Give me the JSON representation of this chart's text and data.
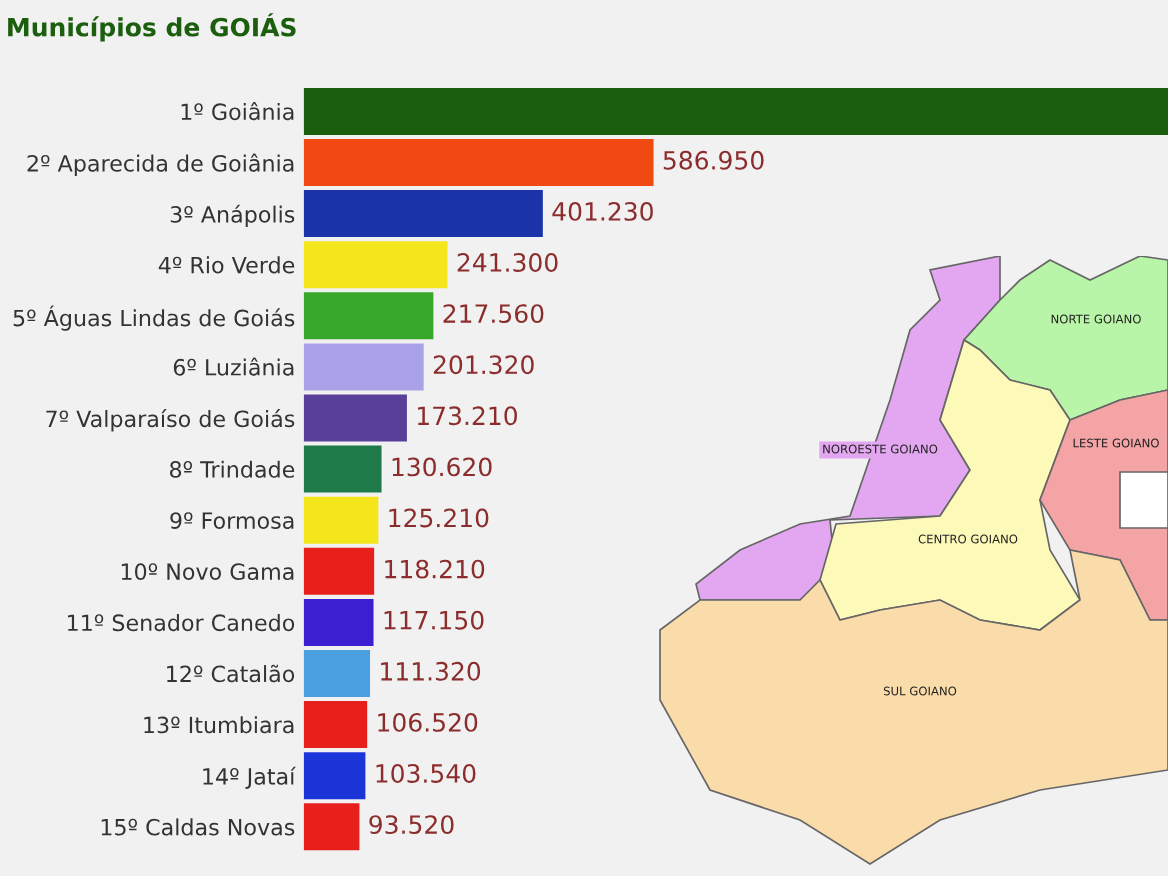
{
  "chart_data": {
    "type": "bar",
    "orientation": "horizontal",
    "title": "Municípios de GOIÁS",
    "categories": [
      "1º Goiânia",
      "2º Aparecida de Goiânia",
      "3º Anápolis",
      "4º Rio Verde",
      "5º Águas Lindas de Goiás",
      "6º Luziânia",
      "7º Valparaíso de Goiás",
      "8º Trindade",
      "9º Formosa",
      "10º Novo Gama",
      "11º Senador Canedo",
      "12º Catalão",
      "13º Itumbiara",
      "14º Jataí",
      "15º Caldas Novas"
    ],
    "values": [
      1450000,
      586950,
      401230,
      241300,
      217560,
      201320,
      173210,
      130620,
      125210,
      118210,
      117150,
      111320,
      106520,
      103540,
      93520
    ],
    "value_labels": [
      null,
      "586.950",
      "401.230",
      "241.300",
      "217.560",
      "201.320",
      "173.210",
      "130.620",
      "125.210",
      "118.210",
      "117.150",
      "111.320",
      "106.520",
      "103.540",
      "93.520"
    ],
    "colors": [
      "#1b5e0e",
      "#f04a12",
      "#1b33a8",
      "#f5e61c",
      "#38a82a",
      "#a9a2e8",
      "#5a3f9a",
      "#1f7a4a",
      "#f5e61c",
      "#e8201c",
      "#3b1fd0",
      "#4aa0e0",
      "#e8201c",
      "#1c35d8",
      "#e8201c"
    ],
    "annotations": [
      "NORTE GOIANO",
      "NOROESTE GOIANO",
      "LESTE GOIANO",
      "CENTRO GOIANO",
      "SUL GOIANO"
    ],
    "grid": false,
    "legend": false
  }
}
